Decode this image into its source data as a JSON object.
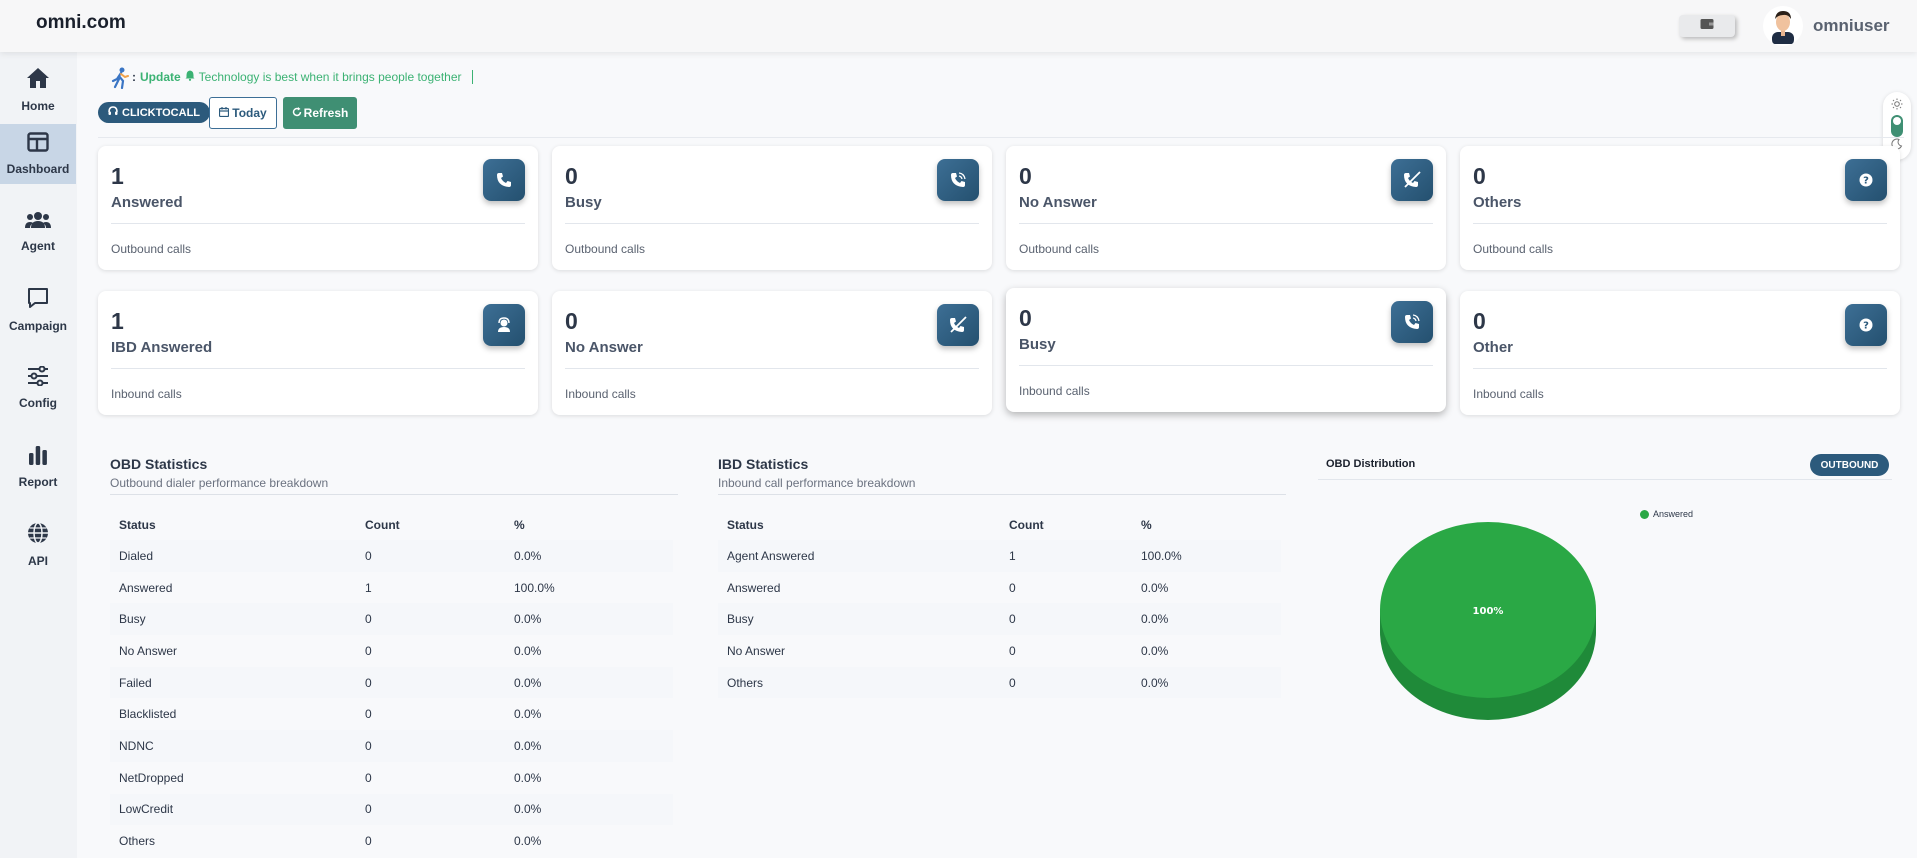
{
  "header": {
    "brand": "omni.com",
    "username": "omniuser"
  },
  "sidebar": {
    "items": [
      {
        "label": "Home",
        "icon": "home-icon"
      },
      {
        "label": "Dashboard",
        "icon": "dashboard-icon",
        "active": true
      },
      {
        "label": "Agent",
        "icon": "users-icon"
      },
      {
        "label": "Campaign",
        "icon": "chat-icon"
      },
      {
        "label": "Config",
        "icon": "sliders-icon"
      },
      {
        "label": "Report",
        "icon": "bar-chart-icon"
      },
      {
        "label": "API",
        "icon": "globe-icon"
      }
    ]
  },
  "ticker": {
    "prefix": ":",
    "label": "Update",
    "message": "Technology is best when it brings people together"
  },
  "toolbar": {
    "clicktocall": "CLICKTOCALL",
    "today": "Today",
    "refresh": "Refresh"
  },
  "outbound_cards": [
    {
      "value": "1",
      "label": "Answered",
      "sub": "Outbound calls",
      "icon": "phone-icon"
    },
    {
      "value": "0",
      "label": "Busy",
      "sub": "Outbound calls",
      "icon": "phone-busy-icon"
    },
    {
      "value": "0",
      "label": "No Answer",
      "sub": "Outbound calls",
      "icon": "phone-missed-icon"
    },
    {
      "value": "0",
      "label": "Others",
      "sub": "Outbound calls",
      "icon": "question-icon"
    }
  ],
  "inbound_cards": [
    {
      "value": "1",
      "label": "IBD Answered",
      "sub": "Inbound calls",
      "icon": "agent-icon"
    },
    {
      "value": "0",
      "label": "No Answer",
      "sub": "Inbound calls",
      "icon": "phone-missed-icon"
    },
    {
      "value": "0",
      "label": "Busy",
      "sub": "Inbound calls",
      "icon": "phone-busy-icon"
    },
    {
      "value": "0",
      "label": "Other",
      "sub": "Inbound calls",
      "icon": "question-icon"
    }
  ],
  "obd_stats": {
    "title": "OBD Statistics",
    "subtitle": "Outbound dialer performance breakdown",
    "columns": [
      "Status",
      "Count",
      "%"
    ],
    "rows": [
      [
        "Dialed",
        "0",
        "0.0%"
      ],
      [
        "Answered",
        "1",
        "100.0%"
      ],
      [
        "Busy",
        "0",
        "0.0%"
      ],
      [
        "No Answer",
        "0",
        "0.0%"
      ],
      [
        "Failed",
        "0",
        "0.0%"
      ],
      [
        "Blacklisted",
        "0",
        "0.0%"
      ],
      [
        "NDNC",
        "0",
        "0.0%"
      ],
      [
        "NetDropped",
        "0",
        "0.0%"
      ],
      [
        "LowCredit",
        "0",
        "0.0%"
      ],
      [
        "Others",
        "0",
        "0.0%"
      ]
    ]
  },
  "ibd_stats": {
    "title": "IBD Statistics",
    "subtitle": "Inbound call performance breakdown",
    "columns": [
      "Status",
      "Count",
      "%"
    ],
    "rows": [
      [
        "Agent Answered",
        "1",
        "100.0%"
      ],
      [
        "Answered",
        "0",
        "0.0%"
      ],
      [
        "Busy",
        "0",
        "0.0%"
      ],
      [
        "No Answer",
        "0",
        "0.0%"
      ],
      [
        "Others",
        "0",
        "0.0%"
      ]
    ]
  },
  "distribution": {
    "title": "OBD Distribution",
    "badge": "OUTBOUND",
    "chart_data": {
      "type": "pie",
      "title": "",
      "categories": [
        "Answered"
      ],
      "values": [
        100
      ],
      "labels": [
        "100%"
      ],
      "legend": "top-right",
      "colors": [
        "#2aa845"
      ]
    }
  }
}
